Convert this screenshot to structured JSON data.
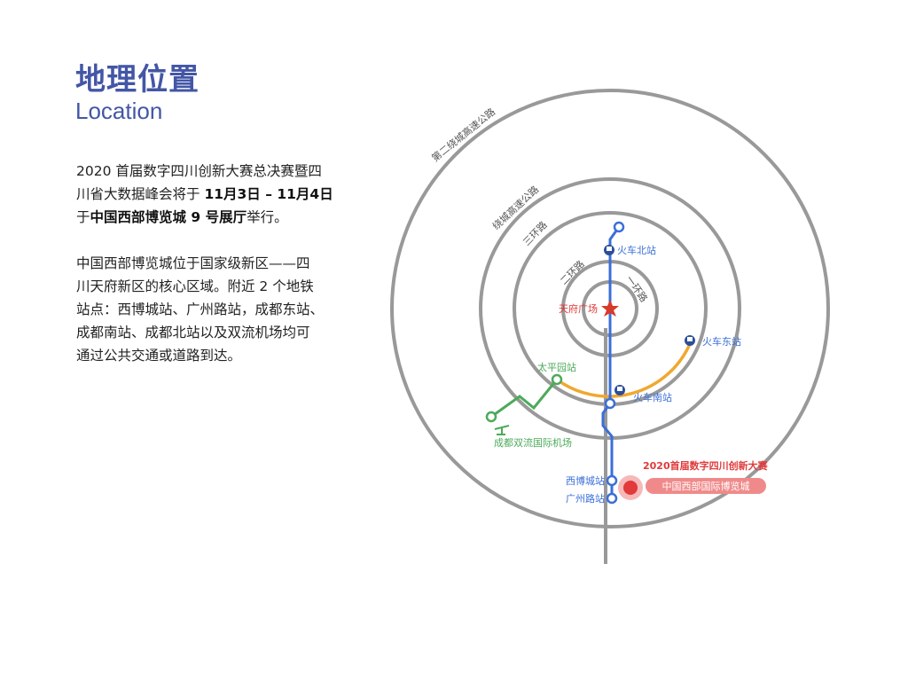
{
  "header": {
    "title": "地理位置",
    "subtitle": "Location"
  },
  "intro": {
    "line1": "2020 首届数字四川创新大赛总决赛暨四",
    "line2_a": "川省大数据峰会将于 ",
    "line2_b": "11月3日 – 11月4日",
    "line3_a": "于",
    "line3_b": "中国西部博览城 9 号展厅",
    "line3_c": "举行。"
  },
  "description": {
    "lines": [
      "中国西部博览城位于国家级新区——四",
      "川天府新区的核心区域。附近 2 个地铁",
      "站点：西博城站、广州路站，成都东站、",
      "成都南站、成都北站以及双流机场均可",
      "通过公共交通或道路到达。"
    ]
  },
  "map": {
    "rings": [
      "第二绕城高速公路",
      "绕城高速公路",
      "三环路",
      "二环路",
      "一环路"
    ],
    "center": "天府广场",
    "stations": {
      "north": "火车北站",
      "east": "火车东站",
      "south": "火车南站",
      "taiping": "太平园站",
      "airport": "成都双流国际机场",
      "xibocheng": "西博城站",
      "guangzhoulu": "广州路站"
    },
    "venue": {
      "event": "2020首届数字四川创新大赛",
      "name": "中国西部国际博览城"
    },
    "colors": {
      "ring": "#999999",
      "metro": "#3a6fd8",
      "orange": "#f0a830",
      "green": "#4caa5a",
      "red": "#e03a3a",
      "title": "#4356a6"
    },
    "icons": [
      "train-icon",
      "star-icon",
      "plane-icon"
    ]
  }
}
